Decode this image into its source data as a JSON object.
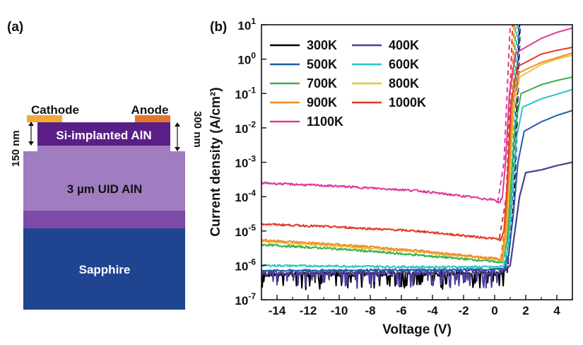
{
  "panel_a": {
    "label": "(a)",
    "cathode_label": "Cathode",
    "anode_label": "Anode",
    "implant_label": "Si-implanted AlN",
    "uid_label": "3 µm UID AlN",
    "substrate_label": "Sapphire",
    "dim_left": "150 nm",
    "dim_right": "300 nm",
    "colors": {
      "cathode": "#f0a93a",
      "anode": "#e2762f",
      "implant": "#5a1f86",
      "uid": "#a07cc0",
      "interlayer": "#7d4aa6",
      "substrate": "#1f4490"
    }
  },
  "chart_data": {
    "type": "line",
    "panel_label": "(b)",
    "xlabel": "Voltage (V)",
    "ylabel": "Current density (A/cm²)",
    "xlim": [
      -15,
      5
    ],
    "ylim": [
      1e-07,
      10
    ],
    "yscale": "log",
    "x_ticks": [
      -14,
      -12,
      -10,
      -8,
      -6,
      -4,
      -2,
      0,
      2,
      4
    ],
    "x_tick_labels": [
      "-14",
      "-12",
      "-10",
      "-8",
      "-6",
      "-4",
      "-2",
      "0",
      "2",
      "4"
    ],
    "y_ticks": [
      1e-07,
      1e-06,
      1e-05,
      0.0001,
      0.001,
      0.01,
      0.1,
      1,
      10
    ],
    "y_tick_labels": [
      {
        "base": "10",
        "exp": "-7"
      },
      {
        "base": "10",
        "exp": "-6"
      },
      {
        "base": "10",
        "exp": "-5"
      },
      {
        "base": "10",
        "exp": "-4"
      },
      {
        "base": "10",
        "exp": "-3"
      },
      {
        "base": "10",
        "exp": "-2"
      },
      {
        "base": "10",
        "exp": "-1"
      },
      {
        "base": "10",
        "exp": "0"
      },
      {
        "base": "10",
        "exp": "1"
      }
    ],
    "legend_position": "top-left",
    "grid": false,
    "series": [
      {
        "name": "300K",
        "color": "#000000",
        "noise": true,
        "x": [
          -15,
          -10,
          -5,
          0,
          0.5,
          1.0,
          1.3,
          1.6,
          2.0,
          3.0,
          4.0,
          5.0
        ],
        "y": [
          5.5e-07,
          5.6e-07,
          5.7e-07,
          5.8e-07,
          6e-07,
          1e-06,
          1e-05,
          0.0001,
          0.0005,
          0.0006,
          0.0008,
          0.001
        ]
      },
      {
        "name": "400K",
        "color": "#4b3f9b",
        "noise": true,
        "x": [
          -15,
          -10,
          -5,
          0,
          0.5,
          1.0,
          1.3,
          1.6,
          2.0,
          3.0,
          4.0,
          5.0
        ],
        "y": [
          6e-07,
          6.1e-07,
          6.2e-07,
          6.3e-07,
          6.5e-07,
          1e-06,
          1e-05,
          0.0001,
          0.0005,
          0.0006,
          0.0008,
          0.001
        ]
      },
      {
        "name": "500K",
        "color": "#1f5ea8",
        "x": [
          -15,
          -10,
          -5,
          0,
          0.6,
          0.9,
          1.2,
          1.5,
          1.9,
          3.0,
          4.0,
          5.0
        ],
        "y": [
          7e-07,
          7.2e-07,
          7.4e-07,
          7.6e-07,
          8e-07,
          2e-06,
          3e-05,
          0.001,
          0.008,
          0.015,
          0.023,
          0.032
        ]
      },
      {
        "name": "600K",
        "color": "#2ec4c4",
        "x": [
          -15,
          -10,
          -5,
          0,
          0.6,
          0.85,
          1.1,
          1.4,
          1.8,
          3.0,
          4.0,
          5.0
        ],
        "y": [
          1e-06,
          9.5e-07,
          9e-07,
          9e-07,
          9.5e-07,
          3e-06,
          0.0001,
          0.005,
          0.04,
          0.07,
          0.095,
          0.13
        ]
      },
      {
        "name": "700K",
        "color": "#3aaf4a",
        "x": [
          -15,
          -10,
          -5,
          0,
          0.5,
          0.8,
          1.0,
          1.3,
          1.7,
          3.0,
          4.0,
          5.0
        ],
        "y": [
          4e-06,
          3e-06,
          2e-06,
          1.3e-06,
          1.2e-06,
          5e-06,
          0.0001,
          0.01,
          0.1,
          0.18,
          0.24,
          0.3
        ]
      },
      {
        "name": "800K",
        "color": "#e8c43a",
        "x": [
          -15,
          -10,
          -5,
          0,
          0.5,
          0.75,
          0.95,
          1.2,
          1.6,
          3.0,
          4.0,
          5.0
        ],
        "y": [
          5e-06,
          3.6e-06,
          2.5e-06,
          1.5e-06,
          1.4e-06,
          8e-06,
          0.0002,
          0.03,
          0.3,
          0.7,
          1.0,
          1.3
        ]
      },
      {
        "name": "900K",
        "color": "#f08a2a",
        "x": [
          -15,
          -10,
          -5,
          0,
          0.45,
          0.7,
          0.9,
          1.15,
          1.55,
          3.0,
          4.0,
          5.0
        ],
        "y": [
          5.5e-06,
          4e-06,
          2.7e-06,
          1.6e-06,
          1.5e-06,
          1e-05,
          0.0003,
          0.05,
          0.4,
          0.8,
          1.1,
          1.5
        ]
      },
      {
        "name": "1000K",
        "color": "#e03a2a",
        "x": [
          -15,
          -10,
          -5,
          0,
          0.4,
          0.6,
          0.8,
          1.05,
          1.45,
          3.0,
          4.0,
          5.0
        ],
        "y": [
          1.6e-05,
          1.3e-05,
          1e-05,
          6e-06,
          5.5e-06,
          1e-05,
          0.0002,
          0.05,
          0.6,
          1.4,
          1.8,
          2.2
        ]
      },
      {
        "name": "1100K",
        "color": "#e0389a",
        "x": [
          -15,
          -10,
          -5,
          0,
          0.3,
          0.5,
          0.7,
          0.95,
          1.35,
          3.0,
          4.0,
          5.0
        ],
        "y": [
          0.00025,
          0.0002,
          0.00015,
          8e-05,
          6.5e-05,
          0.0001,
          0.001,
          0.1,
          1.5,
          4.0,
          6.0,
          8.0
        ]
      }
    ],
    "fits": [
      {
        "color": "#000000",
        "x": [
          -15,
          0.8,
          1.25,
          1.6
        ],
        "y": [
          6e-07,
          6e-07,
          0.0001,
          10
        ]
      },
      {
        "color": "#4b3f9b",
        "x": [
          -15,
          0.8,
          1.3,
          1.65
        ],
        "y": [
          7e-07,
          7e-07,
          0.0001,
          10
        ]
      },
      {
        "color": "#1f5ea8",
        "x": [
          0.7,
          1.15,
          1.55
        ],
        "y": [
          8e-07,
          0.0001,
          10
        ]
      },
      {
        "color": "#2ec4c4",
        "x": [
          0.6,
          1.05,
          1.45
        ],
        "y": [
          1e-06,
          0.0001,
          10
        ]
      },
      {
        "color": "#3aaf4a",
        "x": [
          0.5,
          0.95,
          1.35
        ],
        "y": [
          1.3e-06,
          0.0001,
          10
        ]
      },
      {
        "color": "#e8c43a",
        "x": [
          0.45,
          0.9,
          1.3
        ],
        "y": [
          1.5e-06,
          0.0001,
          10
        ]
      },
      {
        "color": "#f08a2a",
        "x": [
          0.4,
          0.85,
          1.25
        ],
        "y": [
          1.6e-06,
          0.0001,
          10
        ]
      },
      {
        "color": "#e03a2a",
        "x": [
          0.3,
          0.75,
          1.15
        ],
        "y": [
          6e-06,
          0.0001,
          10
        ]
      },
      {
        "color": "#e0389a",
        "x": [
          0.2,
          0.6,
          1.0
        ],
        "y": [
          7e-05,
          0.001,
          10
        ]
      }
    ]
  }
}
